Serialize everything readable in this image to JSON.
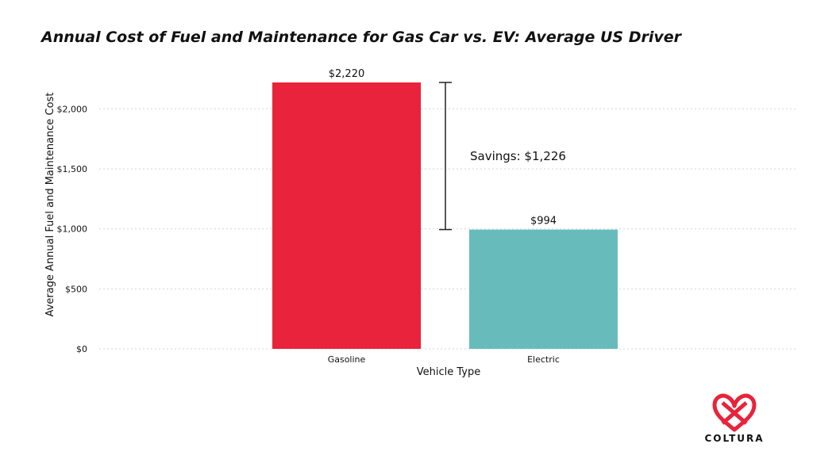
{
  "chart_data": {
    "type": "bar",
    "title": "Annual Cost of Fuel and Maintenance for Gas Car vs. EV: Average US Driver",
    "xlabel": "Vehicle Type",
    "ylabel": "Average Annual Fuel and Maintenance Cost",
    "categories": [
      "Gasoline",
      "Electric"
    ],
    "values": [
      2220,
      994
    ],
    "value_labels": [
      "$2,220",
      "$994"
    ],
    "colors": [
      "#e8233b",
      "#67bcbb"
    ],
    "ylim": [
      0,
      2220
    ],
    "yticks": [
      0,
      500,
      1000,
      1500,
      2000
    ],
    "ytick_labels": [
      "$0",
      "$500",
      "$1,000",
      "$1,500",
      "$2,000"
    ],
    "grid": true,
    "annotation": {
      "label": "Savings: $1,226",
      "from_value": 994,
      "to_value": 2220
    }
  },
  "logo": {
    "text": "COLTURA",
    "color": "#e8233b"
  }
}
